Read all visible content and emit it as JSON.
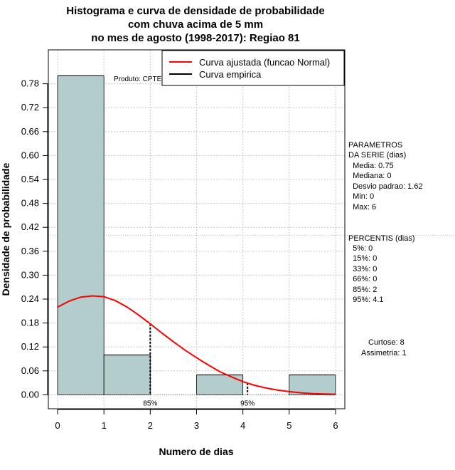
{
  "chart_data": {
    "type": "bar",
    "title_lines": [
      "Histograma e curva de densidade de probabilidade",
      "com chuva acima de 5 mm",
      "no mes de agosto (1998-2017): Regiao 81"
    ],
    "xlabel": "Numero de dias",
    "ylabel": "Densidade de probabilidade",
    "xlim": [
      -0.2,
      6.2
    ],
    "ylim": [
      -0.035,
      0.865
    ],
    "x_ticks": [
      "0",
      "1",
      "2",
      "3",
      "4",
      "5",
      "6"
    ],
    "y_ticks": [
      "0.00",
      "0.06",
      "0.12",
      "0.18",
      "0.24",
      "0.30",
      "0.36",
      "0.42",
      "0.48",
      "0.54",
      "0.60",
      "0.66",
      "0.72",
      "0.78"
    ],
    "histogram": {
      "bin_edges": [
        0,
        1,
        2,
        3,
        4,
        5,
        6
      ],
      "densities": [
        0.8,
        0.1,
        0.0,
        0.05,
        0.0,
        0.05
      ],
      "fill_color": "#b3cccc"
    },
    "fitted_curve": {
      "name": "Curva ajustada (funcao Normal)",
      "color": "#ff0000",
      "x": [
        0.0,
        0.25,
        0.5,
        0.75,
        1.0,
        1.25,
        1.5,
        1.75,
        2.0,
        2.25,
        2.5,
        2.75,
        3.0,
        3.25,
        3.5,
        3.75,
        4.0,
        4.25,
        4.5,
        4.75,
        5.0,
        5.25,
        5.5,
        5.75,
        6.0
      ],
      "y": [
        0.22,
        0.235,
        0.245,
        0.248,
        0.246,
        0.236,
        0.22,
        0.2,
        0.178,
        0.155,
        0.133,
        0.112,
        0.093,
        0.075,
        0.058,
        0.045,
        0.033,
        0.024,
        0.017,
        0.012,
        0.008,
        0.005,
        0.003,
        0.002,
        0.0015
      ]
    },
    "empirical_curve": {
      "name": "Curva empirica",
      "color": "#000000"
    },
    "percentile_markers": [
      {
        "x": 2.0,
        "label": "85%"
      },
      {
        "x": 4.1,
        "label": "95%"
      }
    ],
    "product_label": "Produto: CPTEC/INPE",
    "grid": true,
    "ref_line_y": 0.4,
    "legend_position": "top-right"
  },
  "side_panel": {
    "params": [
      "PARAMETROS",
      "DA SERIE (dias)",
      "  Media: 0.75",
      "  Mediana: 0",
      "  Desvio padrao: 1.62",
      "  Min: 0",
      "  Max: 6"
    ],
    "percentis": [
      "PERCENTIS (dias)",
      "  5%: 0",
      "  15%: 0",
      "  33%: 0",
      "  66%: 0",
      "  85%: 2",
      "  95%: 4.1"
    ],
    "curtose": "Curtose: 8",
    "assimetria": "Assimetria: 1"
  }
}
